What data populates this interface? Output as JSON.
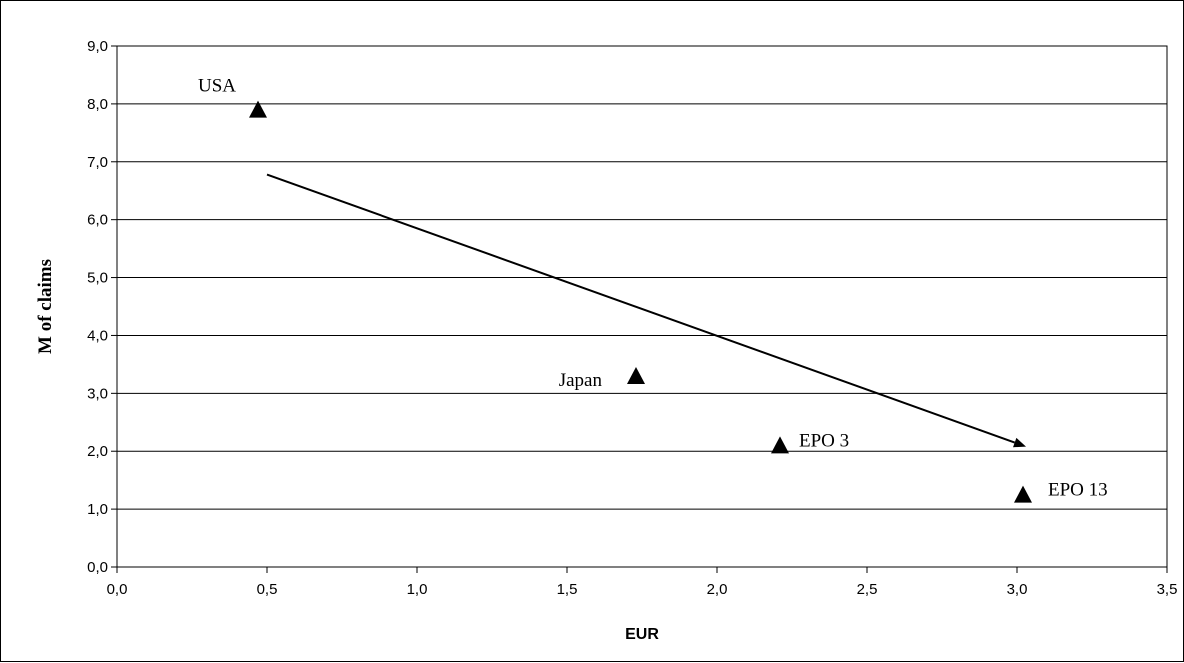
{
  "chart_data": {
    "type": "scatter",
    "title": "",
    "xlabel": "EUR",
    "ylabel": "M of claims",
    "xlim": [
      0,
      3.5
    ],
    "ylim": [
      0,
      9
    ],
    "x_ticks": [
      "0,0",
      "0,5",
      "1,0",
      "1,5",
      "2,0",
      "2,5",
      "3,0",
      "3,5"
    ],
    "y_ticks": [
      "0,0",
      "1,0",
      "2,0",
      "3,0",
      "4,0",
      "5,0",
      "6,0",
      "7,0",
      "8,0",
      "9,0"
    ],
    "grid": "horizontal",
    "marker": "triangle",
    "points": [
      {
        "label": "USA",
        "x": 0.47,
        "y": 7.9
      },
      {
        "label": "Japan",
        "x": 1.73,
        "y": 3.3
      },
      {
        "label": "EPO 3",
        "x": 2.21,
        "y": 2.1
      },
      {
        "label": "EPO 13",
        "x": 3.02,
        "y": 1.25
      }
    ],
    "trend_arrow": {
      "from": [
        0.5,
        6.78
      ],
      "to": [
        3.03,
        2.08
      ]
    }
  }
}
